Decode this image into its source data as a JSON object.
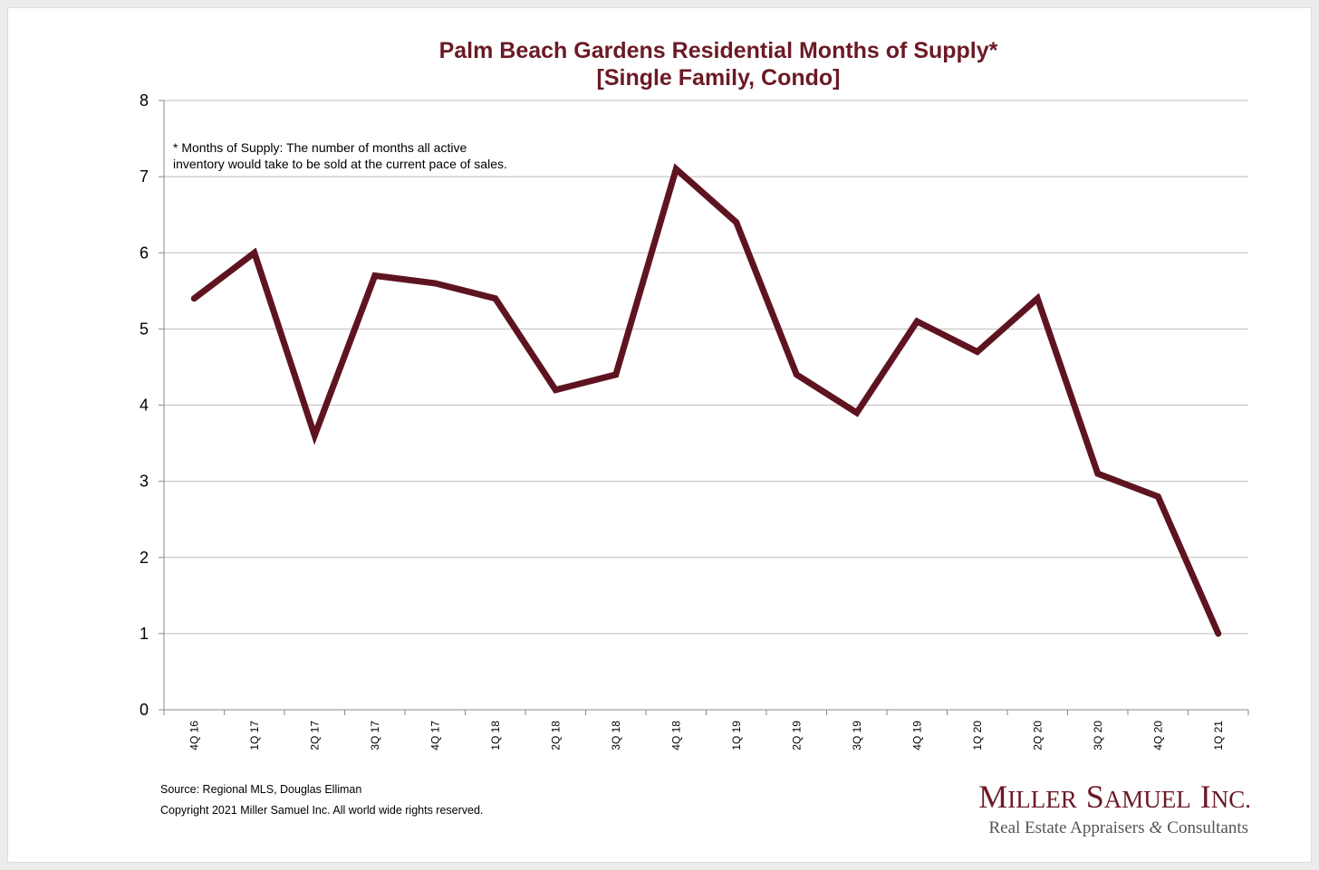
{
  "chart_data": {
    "type": "line",
    "title": "Palm Beach Gardens Residential Months of Supply*",
    "subtitle": "[Single Family, Condo]",
    "categories": [
      "4Q 16",
      "1Q 17",
      "2Q 17",
      "3Q 17",
      "4Q 17",
      "1Q 18",
      "2Q 18",
      "3Q 18",
      "4Q 18",
      "1Q 19",
      "2Q 19",
      "3Q 19",
      "4Q 19",
      "1Q 20",
      "2Q 20",
      "3Q 20",
      "4Q 20",
      "1Q 21"
    ],
    "series": [
      {
        "values": [
          5.4,
          6.0,
          3.6,
          5.7,
          5.6,
          5.4,
          4.2,
          4.4,
          7.1,
          6.4,
          4.4,
          3.9,
          5.1,
          4.7,
          5.4,
          3.1,
          2.8,
          1.0
        ]
      }
    ],
    "ylim": [
      0,
      8
    ],
    "yticks": [
      "0",
      "1",
      "2",
      "3",
      "4",
      "5",
      "6",
      "7",
      "8"
    ],
    "grid": true,
    "legend": "none",
    "note_lines": [
      "* Months of Supply: The number of months all active",
      "inventory would take to be sold at the current pace of sales."
    ]
  },
  "footer": {
    "source": "Source: Regional MLS, Douglas Elliman",
    "copyright": "Copyright 2021 Miller Samuel Inc.  All world wide rights reserved."
  },
  "brand": {
    "name_initial_1": "M",
    "name_rest_1": "ILLER",
    "name_initial_2": "S",
    "name_rest_2": "AMUEL",
    "name_initial_3": "I",
    "name_rest_3": "NC.",
    "tagline_prefix": "Real Estate Appraisers",
    "tagline_amp": "&",
    "tagline_suffix": "Consultants"
  },
  "colors": {
    "series": "#5e1420",
    "title": "#6b1a25",
    "grid": "#bdbdbd",
    "brand": "#6b1a25",
    "tagline": "#555555"
  }
}
